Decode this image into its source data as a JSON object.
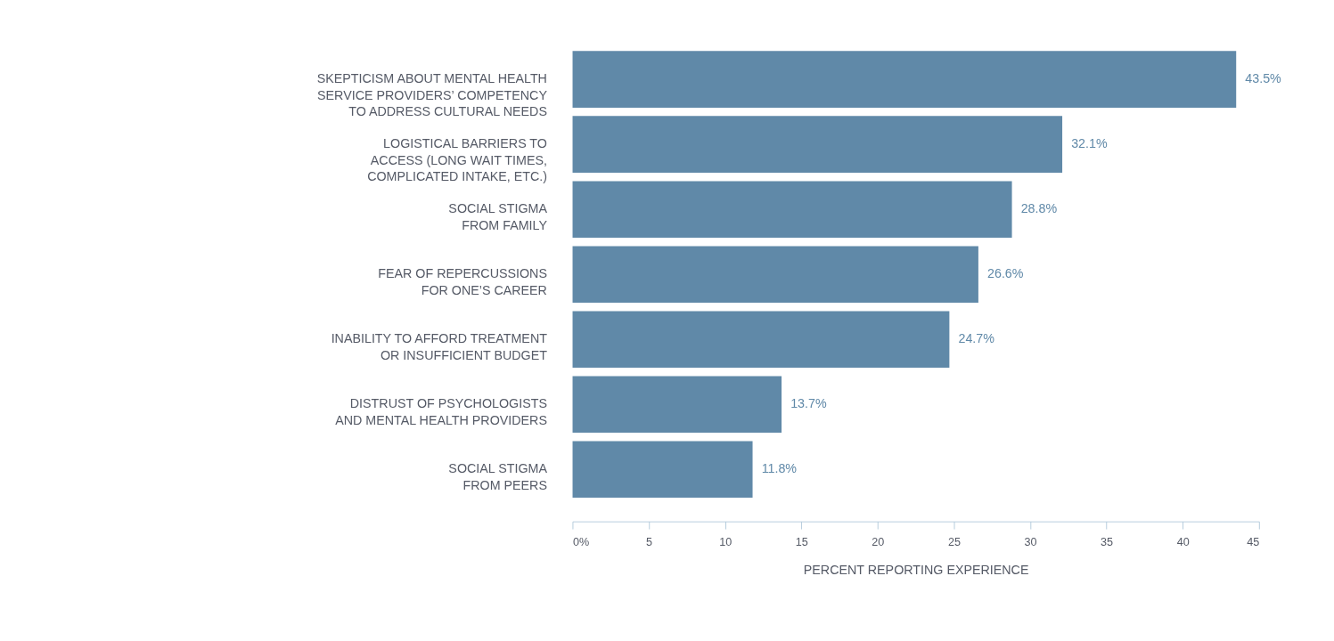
{
  "chart_data": {
    "type": "bar",
    "orientation": "horizontal",
    "categories": [
      "SKEPTICISM ABOUT MENTAL HEALTH\nSERVICE PROVIDERS’ COMPETENCY\nTO ADDRESS CULTURAL NEEDS",
      "LOGISTICAL BARRIERS TO\nACCESS (LONG WAIT TIMES,\nCOMPLICATED INTAKE, ETC.)",
      "SOCIAL STIGMA\nFROM FAMILY",
      "FEAR OF REPERCUSSIONS\nFOR ONE’S CAREER",
      "INABILITY TO AFFORD TREATMENT\nOR INSUFFICIENT BUDGET",
      "DISTRUST OF PSYCHOLOGISTS\nAND MENTAL HEALTH PROVIDERS",
      "SOCIAL STIGMA\nFROM PEERS"
    ],
    "values": [
      43.5,
      32.1,
      28.8,
      26.6,
      24.7,
      13.7,
      11.8
    ],
    "value_labels": [
      "43.5%",
      "32.1%",
      "28.8%",
      "26.6%",
      "24.7%",
      "13.7%",
      "11.8%"
    ],
    "color": "#6089a8",
    "xlabel": "PERCENT REPORTING EXPERIENCE",
    "xlim": [
      0,
      45
    ],
    "xticks": [
      {
        "value": 0,
        "label": "0%"
      },
      5,
      10,
      15,
      20,
      25,
      30,
      35,
      40,
      45
    ],
    "grid": false
  }
}
